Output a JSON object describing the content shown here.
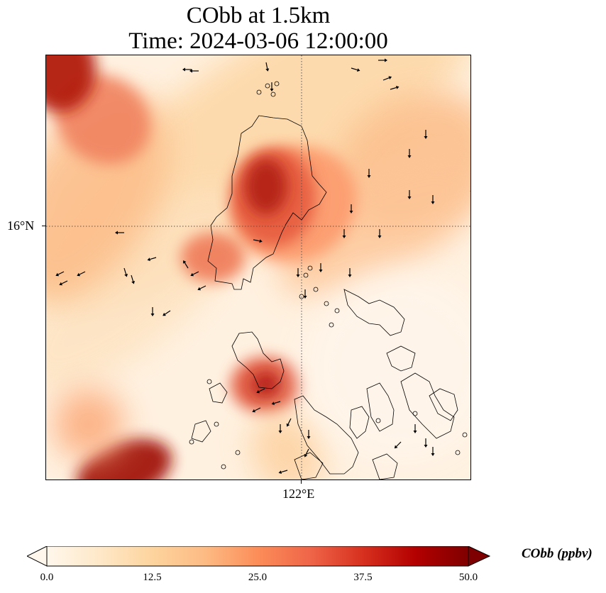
{
  "title": {
    "line1": "CObb at 1.5km",
    "line2": "Time: 2024-03-06 12:00:00"
  },
  "map": {
    "lat_label": "16°N",
    "lon_label": "122°E",
    "gridline_style": "dotted",
    "coastline_color": "#000000",
    "wind_vector_color": "#000000"
  },
  "colorbar": {
    "label": "CObb (ppbv)",
    "colormap": "OrRd",
    "min": 0.0,
    "max": 50.0,
    "extend": "both",
    "ticks": [
      "0.0",
      "12.5",
      "25.0",
      "37.5",
      "50.0"
    ],
    "stops": [
      "#fff7ec",
      "#fee8c8",
      "#fdd49e",
      "#fdbb84",
      "#fc8d59",
      "#ef6548",
      "#d7301f",
      "#b30000",
      "#7f0000"
    ]
  }
}
